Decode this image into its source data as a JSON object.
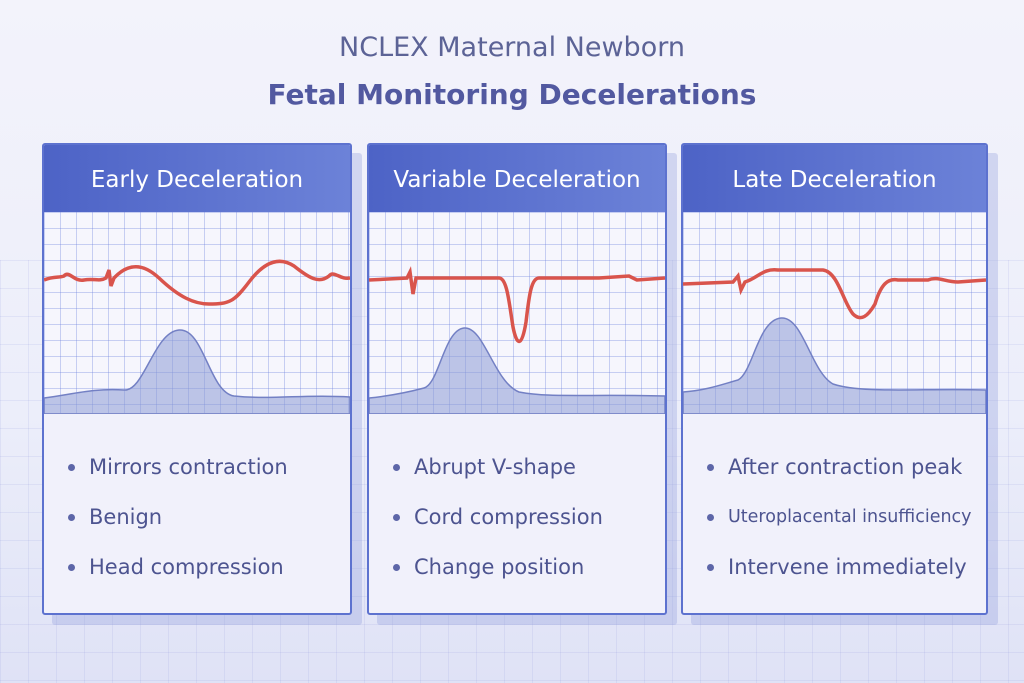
{
  "title": {
    "line1": "NCLEX Maternal Newborn",
    "line2": "Fetal Monitoring Decelerations"
  },
  "colors": {
    "header": "#5368c9",
    "fhr_trace": "#d9544c",
    "contraction": "#8d9bd6"
  },
  "cards": [
    {
      "title": "Early Deceleration",
      "bullets": [
        "Mirrors contraction",
        "Benign",
        "Head compression"
      ]
    },
    {
      "title": "Variable Deceleration",
      "bullets": [
        "Abrupt V-shape",
        "Cord compression",
        "Change position"
      ]
    },
    {
      "title": "Late Deceleration",
      "bullets": [
        "After contraction peak",
        "Uteroplacental insufficiency",
        "Intervene immediately"
      ]
    }
  ]
}
